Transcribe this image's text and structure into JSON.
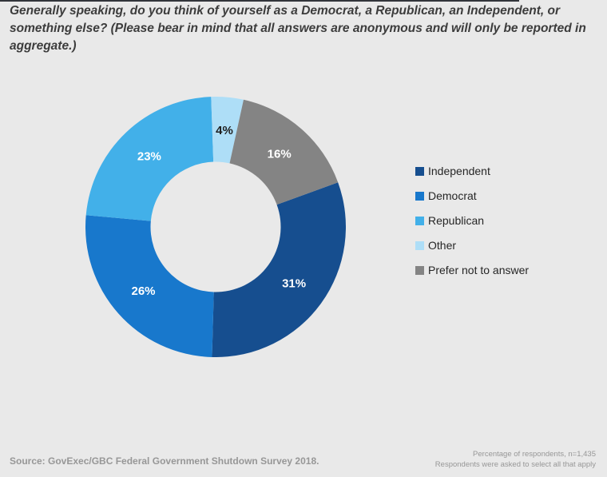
{
  "page": {
    "background_color": "#e9e9e9",
    "accent_bar_color": "#32343a",
    "title_color": "#3c3c3c",
    "legend_text_color": "#262626",
    "footer_text_color": "#979797"
  },
  "title": {
    "full": "Generally speaking, do you think of yourself as a Democrat, a Republican, an Independent, or something else? (Please bear in mind that all answers are anonymous and will only be reported in aggregate.)",
    "lines": [
      "Generally speaking, do you think of yourself as a Democrat, a Republican, an Independent, or",
      "something else? (Please bear in mind that all answers are anonymous and will only be reported in",
      "aggregate.)"
    ]
  },
  "chart_data": {
    "type": "pie",
    "subtype": "donut",
    "title": "Generally speaking, do you think of yourself as a Democrat, a Republican, an Independent, or something else?",
    "value_suffix": "%",
    "start_angle_deg": 70,
    "direction": "clockwise",
    "inner_radius_ratio": 0.5,
    "legend_position": "right",
    "data_labels": "inside",
    "slices": [
      {
        "label": "Independent",
        "value": 31,
        "color": "#164e8f",
        "label_color": "#ffffff"
      },
      {
        "label": "Democrat",
        "value": 26,
        "color": "#1878cc",
        "label_color": "#ffffff"
      },
      {
        "label": "Republican",
        "value": 23,
        "color": "#42b0e9",
        "label_color": "#ffffff"
      },
      {
        "label": "Other",
        "value": 4,
        "color": "#aedef7",
        "label_color": "#1f1f1f"
      },
      {
        "label": "Prefer not to answer",
        "value": 16,
        "color": "#848484",
        "label_color": "#ffffff"
      }
    ]
  },
  "footer": {
    "source": "Source: GovExec/GBC Federal Government Shutdown Survey 2018.",
    "notes": [
      "Percentage of respondents, n=1,435",
      "Respondents were asked to select all that apply"
    ]
  }
}
